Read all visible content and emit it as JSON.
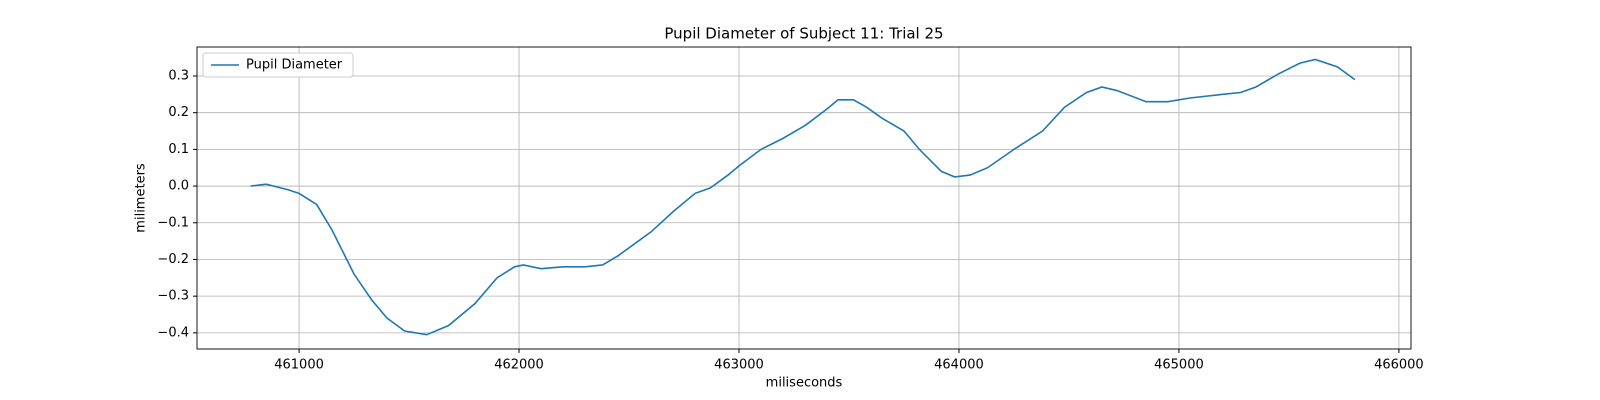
{
  "chart_data": {
    "type": "line",
    "title": "Pupil Diameter of Subject 11: Trial 25",
    "xlabel": "miliseconds",
    "ylabel": "milimeters",
    "x": [
      460780,
      460850,
      460950,
      461000,
      461080,
      461150,
      461250,
      461330,
      461400,
      461480,
      461580,
      461680,
      461800,
      461900,
      461980,
      462020,
      462100,
      462200,
      462300,
      462380,
      462450,
      462600,
      462700,
      462800,
      462870,
      462950,
      463000,
      463100,
      463200,
      463300,
      463400,
      463450,
      463520,
      463580,
      463650,
      463750,
      463820,
      463920,
      463980,
      464050,
      464130,
      464250,
      464380,
      464480,
      464580,
      464650,
      464720,
      464850,
      464950,
      465050,
      465200,
      465280,
      465350,
      465450,
      465550,
      465620,
      465720,
      465800
    ],
    "series": [
      {
        "name": "Pupil Diameter",
        "color": "#1f77b4",
        "values": [
          0.0,
          0.005,
          -0.01,
          -0.02,
          -0.05,
          -0.12,
          -0.24,
          -0.31,
          -0.36,
          -0.395,
          -0.405,
          -0.38,
          -0.32,
          -0.25,
          -0.22,
          -0.215,
          -0.225,
          -0.22,
          -0.22,
          -0.215,
          -0.19,
          -0.125,
          -0.07,
          -0.02,
          -0.005,
          0.03,
          0.055,
          0.1,
          0.13,
          0.165,
          0.21,
          0.235,
          0.235,
          0.215,
          0.185,
          0.15,
          0.1,
          0.04,
          0.025,
          0.03,
          0.05,
          0.1,
          0.15,
          0.215,
          0.255,
          0.27,
          0.26,
          0.23,
          0.23,
          0.24,
          0.25,
          0.255,
          0.27,
          0.305,
          0.335,
          0.345,
          0.325,
          0.29
        ]
      }
    ],
    "xlim": [
      460536,
      466055
    ],
    "ylim": [
      -0.444,
      0.379
    ],
    "xticks": [
      461000,
      462000,
      463000,
      464000,
      465000,
      466000
    ],
    "yticks": [
      {
        "value": -0.4,
        "label": "−0.4"
      },
      {
        "value": -0.3,
        "label": "−0.3"
      },
      {
        "value": -0.2,
        "label": "−0.2"
      },
      {
        "value": -0.1,
        "label": "−0.1"
      },
      {
        "value": 0,
        "label": "0.0"
      },
      0.1,
      0.2,
      0.3
    ],
    "grid": true,
    "legend_loc": "upper-left"
  }
}
